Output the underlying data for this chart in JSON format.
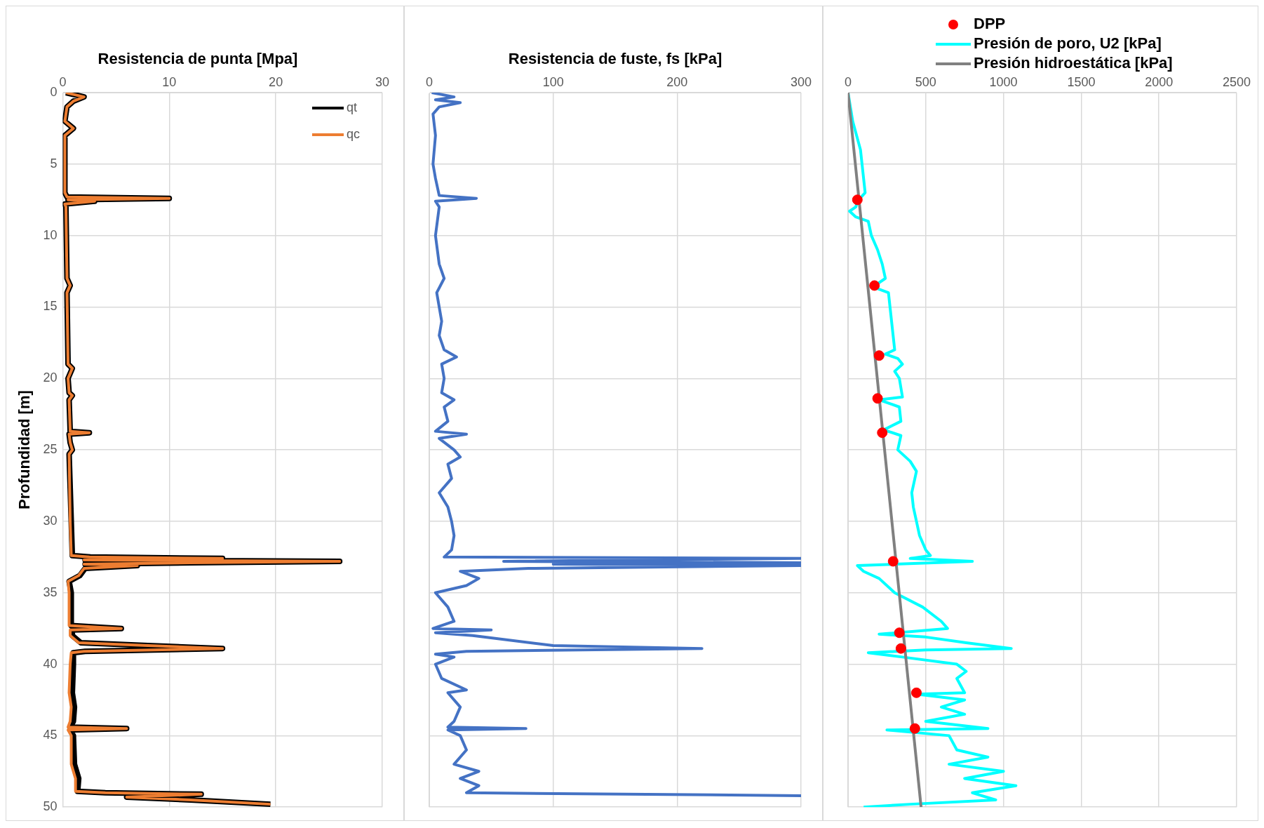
{
  "chart_data": [
    {
      "type": "line",
      "title": "Resistencia de punta [Mpa]",
      "ylabel": "Profundidad [m]",
      "xlim": [
        0,
        30
      ],
      "xticks": [
        0,
        10,
        20,
        30
      ],
      "ylim": [
        50,
        0
      ],
      "yticks": [
        0,
        5,
        10,
        15,
        20,
        25,
        30,
        35,
        40,
        45,
        50
      ],
      "grid": true,
      "legend": "top right",
      "series": [
        {
          "name": "qt",
          "color": "#000000",
          "x": [
            0.3,
            2,
            1,
            0.4,
            0.2,
            1,
            0.2,
            0.2,
            0.4,
            10,
            0.5,
            3,
            0.2,
            0.3,
            0.4,
            0.7,
            0.4,
            0.5,
            0.9,
            0.5,
            0.6,
            0.9,
            0.6,
            0.7,
            2.5,
            0.6,
            0.7,
            0.9,
            0.6,
            0.8,
            0.9,
            2.6,
            15,
            2.1,
            26,
            12,
            2.1,
            7,
            2.1,
            1.6,
            0.6,
            0.8,
            0.8,
            5.5,
            0.9,
            0.9,
            1.7,
            8,
            15,
            2.1,
            1,
            1,
            0.9,
            1.1,
            1,
            0.7,
            6,
            0.7,
            1,
            1.1,
            1.5,
            1.4,
            4,
            13,
            6,
            12,
            19.5
          ],
          "values": [
            0,
            0.3,
            0.6,
            1,
            2,
            2.5,
            3,
            7,
            7.3,
            7.4,
            7.5,
            7.6,
            7.8,
            8,
            13,
            13.5,
            14,
            19,
            19.3,
            20,
            21,
            21.2,
            21.5,
            23.7,
            23.8,
            23.9,
            24.5,
            25,
            25.3,
            30,
            32.4,
            32.5,
            32.6,
            32.7,
            32.8,
            32.9,
            33,
            33.1,
            33.3,
            33.8,
            34.2,
            35,
            37.3,
            37.5,
            37.6,
            38,
            38.5,
            38.7,
            38.9,
            39.1,
            39.2,
            40,
            42,
            43,
            44,
            44.4,
            44.5,
            44.6,
            45,
            47,
            48,
            48.9,
            49,
            49.1,
            49.3,
            49.5,
            49.8
          ]
        },
        {
          "name": "qc",
          "color": "#ed7d31",
          "x": [
            0.3,
            2,
            1,
            0.4,
            0.2,
            1,
            0.2,
            0.2,
            0.4,
            10,
            0.5,
            3,
            0.2,
            0.3,
            0.4,
            0.7,
            0.4,
            0.5,
            0.9,
            0.5,
            0.6,
            0.9,
            0.6,
            0.7,
            2.5,
            0.6,
            0.7,
            0.9,
            0.6,
            0.7,
            0.8,
            2.5,
            15,
            2,
            26,
            12,
            2,
            7,
            2,
            1.5,
            0.5,
            0.6,
            0.6,
            5.5,
            0.7,
            0.7,
            1.5,
            8,
            15,
            2,
            0.8,
            0.7,
            0.6,
            0.8,
            0.7,
            0.5,
            6,
            0.5,
            0.8,
            0.8,
            1.2,
            1.2,
            4,
            13,
            6,
            12,
            19.5
          ],
          "values": [
            0,
            0.3,
            0.6,
            1,
            2,
            2.5,
            3,
            7,
            7.3,
            7.4,
            7.5,
            7.6,
            7.8,
            8,
            13,
            13.5,
            14,
            19,
            19.3,
            20,
            21,
            21.2,
            21.5,
            23.7,
            23.8,
            23.9,
            24.5,
            25,
            25.3,
            30,
            32.4,
            32.5,
            32.6,
            32.7,
            32.8,
            32.9,
            33,
            33.1,
            33.3,
            33.8,
            34.2,
            35,
            37.3,
            37.5,
            37.6,
            38,
            38.5,
            38.7,
            38.9,
            39.1,
            39.2,
            40,
            42,
            43,
            44,
            44.4,
            44.5,
            44.6,
            45,
            47,
            48,
            48.9,
            49,
            49.1,
            49.3,
            49.5,
            49.8
          ]
        }
      ]
    },
    {
      "type": "line",
      "title": "Resistencia de fuste, fs [kPa]",
      "xlim": [
        0,
        300
      ],
      "xticks": [
        0,
        100,
        200,
        300
      ],
      "ylim": [
        50,
        0
      ],
      "yticks": [
        0,
        5,
        10,
        15,
        20,
        25,
        30,
        35,
        40,
        45,
        50
      ],
      "grid": true,
      "tick_labels": "x",
      "series": [
        {
          "color": "#4472c4",
          "x": [
            2,
            20,
            5,
            25,
            8,
            3,
            5,
            3,
            5,
            8,
            38,
            5,
            8,
            5,
            8,
            12,
            6,
            10,
            8,
            12,
            22,
            10,
            12,
            10,
            20,
            12,
            15,
            5,
            30,
            8,
            20,
            25,
            15,
            18,
            8,
            15,
            18,
            20,
            18,
            12,
            300,
            60,
            300,
            100,
            300,
            80,
            25,
            40,
            30,
            5,
            15,
            20,
            3,
            50,
            5,
            35,
            100,
            220,
            30,
            5,
            20,
            5,
            10,
            30,
            15,
            25,
            20,
            15,
            78,
            15,
            25,
            30,
            20,
            40,
            25,
            40,
            30,
            300
          ],
          "values": [
            0,
            0.3,
            0.5,
            0.7,
            1,
            1.5,
            3,
            5,
            6,
            7.2,
            7.4,
            7.6,
            8,
            10,
            12,
            13,
            14,
            16,
            17,
            18,
            18.5,
            19,
            20,
            21,
            21.5,
            22,
            23,
            23.7,
            23.9,
            24.2,
            25,
            25.5,
            26,
            27,
            28,
            29,
            30,
            31,
            32,
            32.5,
            32.6,
            32.8,
            32.9,
            33,
            33.1,
            33.3,
            33.5,
            34,
            34.5,
            35,
            36,
            37,
            37.5,
            37.6,
            37.8,
            38,
            38.7,
            38.9,
            39.1,
            39.3,
            39.5,
            40,
            41,
            41.8,
            42,
            43,
            44,
            44.4,
            44.5,
            44.6,
            45,
            46,
            47,
            47.5,
            48,
            48.5,
            49,
            49.2
          ]
        }
      ]
    },
    {
      "type": "line",
      "xlim": [
        0,
        2500
      ],
      "xticks": [
        0,
        500,
        1000,
        1500,
        2000,
        2500
      ],
      "ylim": [
        50,
        0
      ],
      "yticks": [
        0,
        5,
        10,
        15,
        20,
        25,
        30,
        35,
        40,
        45,
        50
      ],
      "grid": true,
      "tick_labels": "x",
      "legend": "top",
      "series": [
        {
          "name": "DPP",
          "type": "scatter",
          "marker": "circle",
          "color": "#ff0000",
          "x": [
            60,
            170,
            200,
            190,
            220,
            290,
            330,
            340,
            440,
            430
          ],
          "values": [
            7.5,
            13.5,
            18.4,
            21.4,
            23.8,
            32.8,
            37.8,
            38.9,
            42,
            44.5
          ]
        },
        {
          "name": "Presión de poro, U2 [kPa]",
          "color": "#00ffff",
          "x": [
            0,
            30,
            80,
            110,
            60,
            50,
            10,
            50,
            130,
            150,
            190,
            220,
            240,
            160,
            260,
            270,
            290,
            300,
            240,
            320,
            350,
            300,
            330,
            350,
            200,
            330,
            340,
            230,
            340,
            320,
            400,
            440,
            430,
            410,
            420,
            440,
            460,
            500,
            530,
            400,
            800,
            300,
            60,
            100,
            200,
            300,
            480,
            600,
            640,
            200,
            500,
            760,
            1050,
            500,
            130,
            350,
            700,
            760,
            700,
            750,
            440,
            750,
            600,
            750,
            500,
            900,
            250,
            650,
            700,
            900,
            650,
            1000,
            750,
            1080,
            800,
            950,
            400,
            100
          ],
          "values": [
            0,
            2,
            4,
            7,
            7.6,
            8,
            8.3,
            8.7,
            9,
            10,
            11,
            12,
            13,
            13.6,
            14,
            15,
            17,
            18,
            18.3,
            18.6,
            19,
            19.5,
            20,
            21.3,
            21.5,
            22,
            23,
            23.6,
            24,
            25,
            25.8,
            26.5,
            27,
            28,
            29,
            30,
            31,
            32,
            32.4,
            32.6,
            32.8,
            33,
            33.1,
            33.5,
            34,
            35,
            36,
            37,
            37.5,
            37.9,
            38.1,
            38.5,
            38.9,
            39,
            39.2,
            39.5,
            40,
            40.5,
            41,
            42,
            42.1,
            42.5,
            43,
            43.5,
            44,
            44.5,
            44.6,
            45,
            46,
            46.5,
            47,
            47.5,
            48,
            48.5,
            49,
            49.5,
            49.8,
            50
          ]
        },
        {
          "name": "Presión hidroestática [kPa]",
          "color": "#808080",
          "x": [
            0,
            470
          ],
          "values": [
            0,
            50
          ]
        }
      ]
    }
  ]
}
